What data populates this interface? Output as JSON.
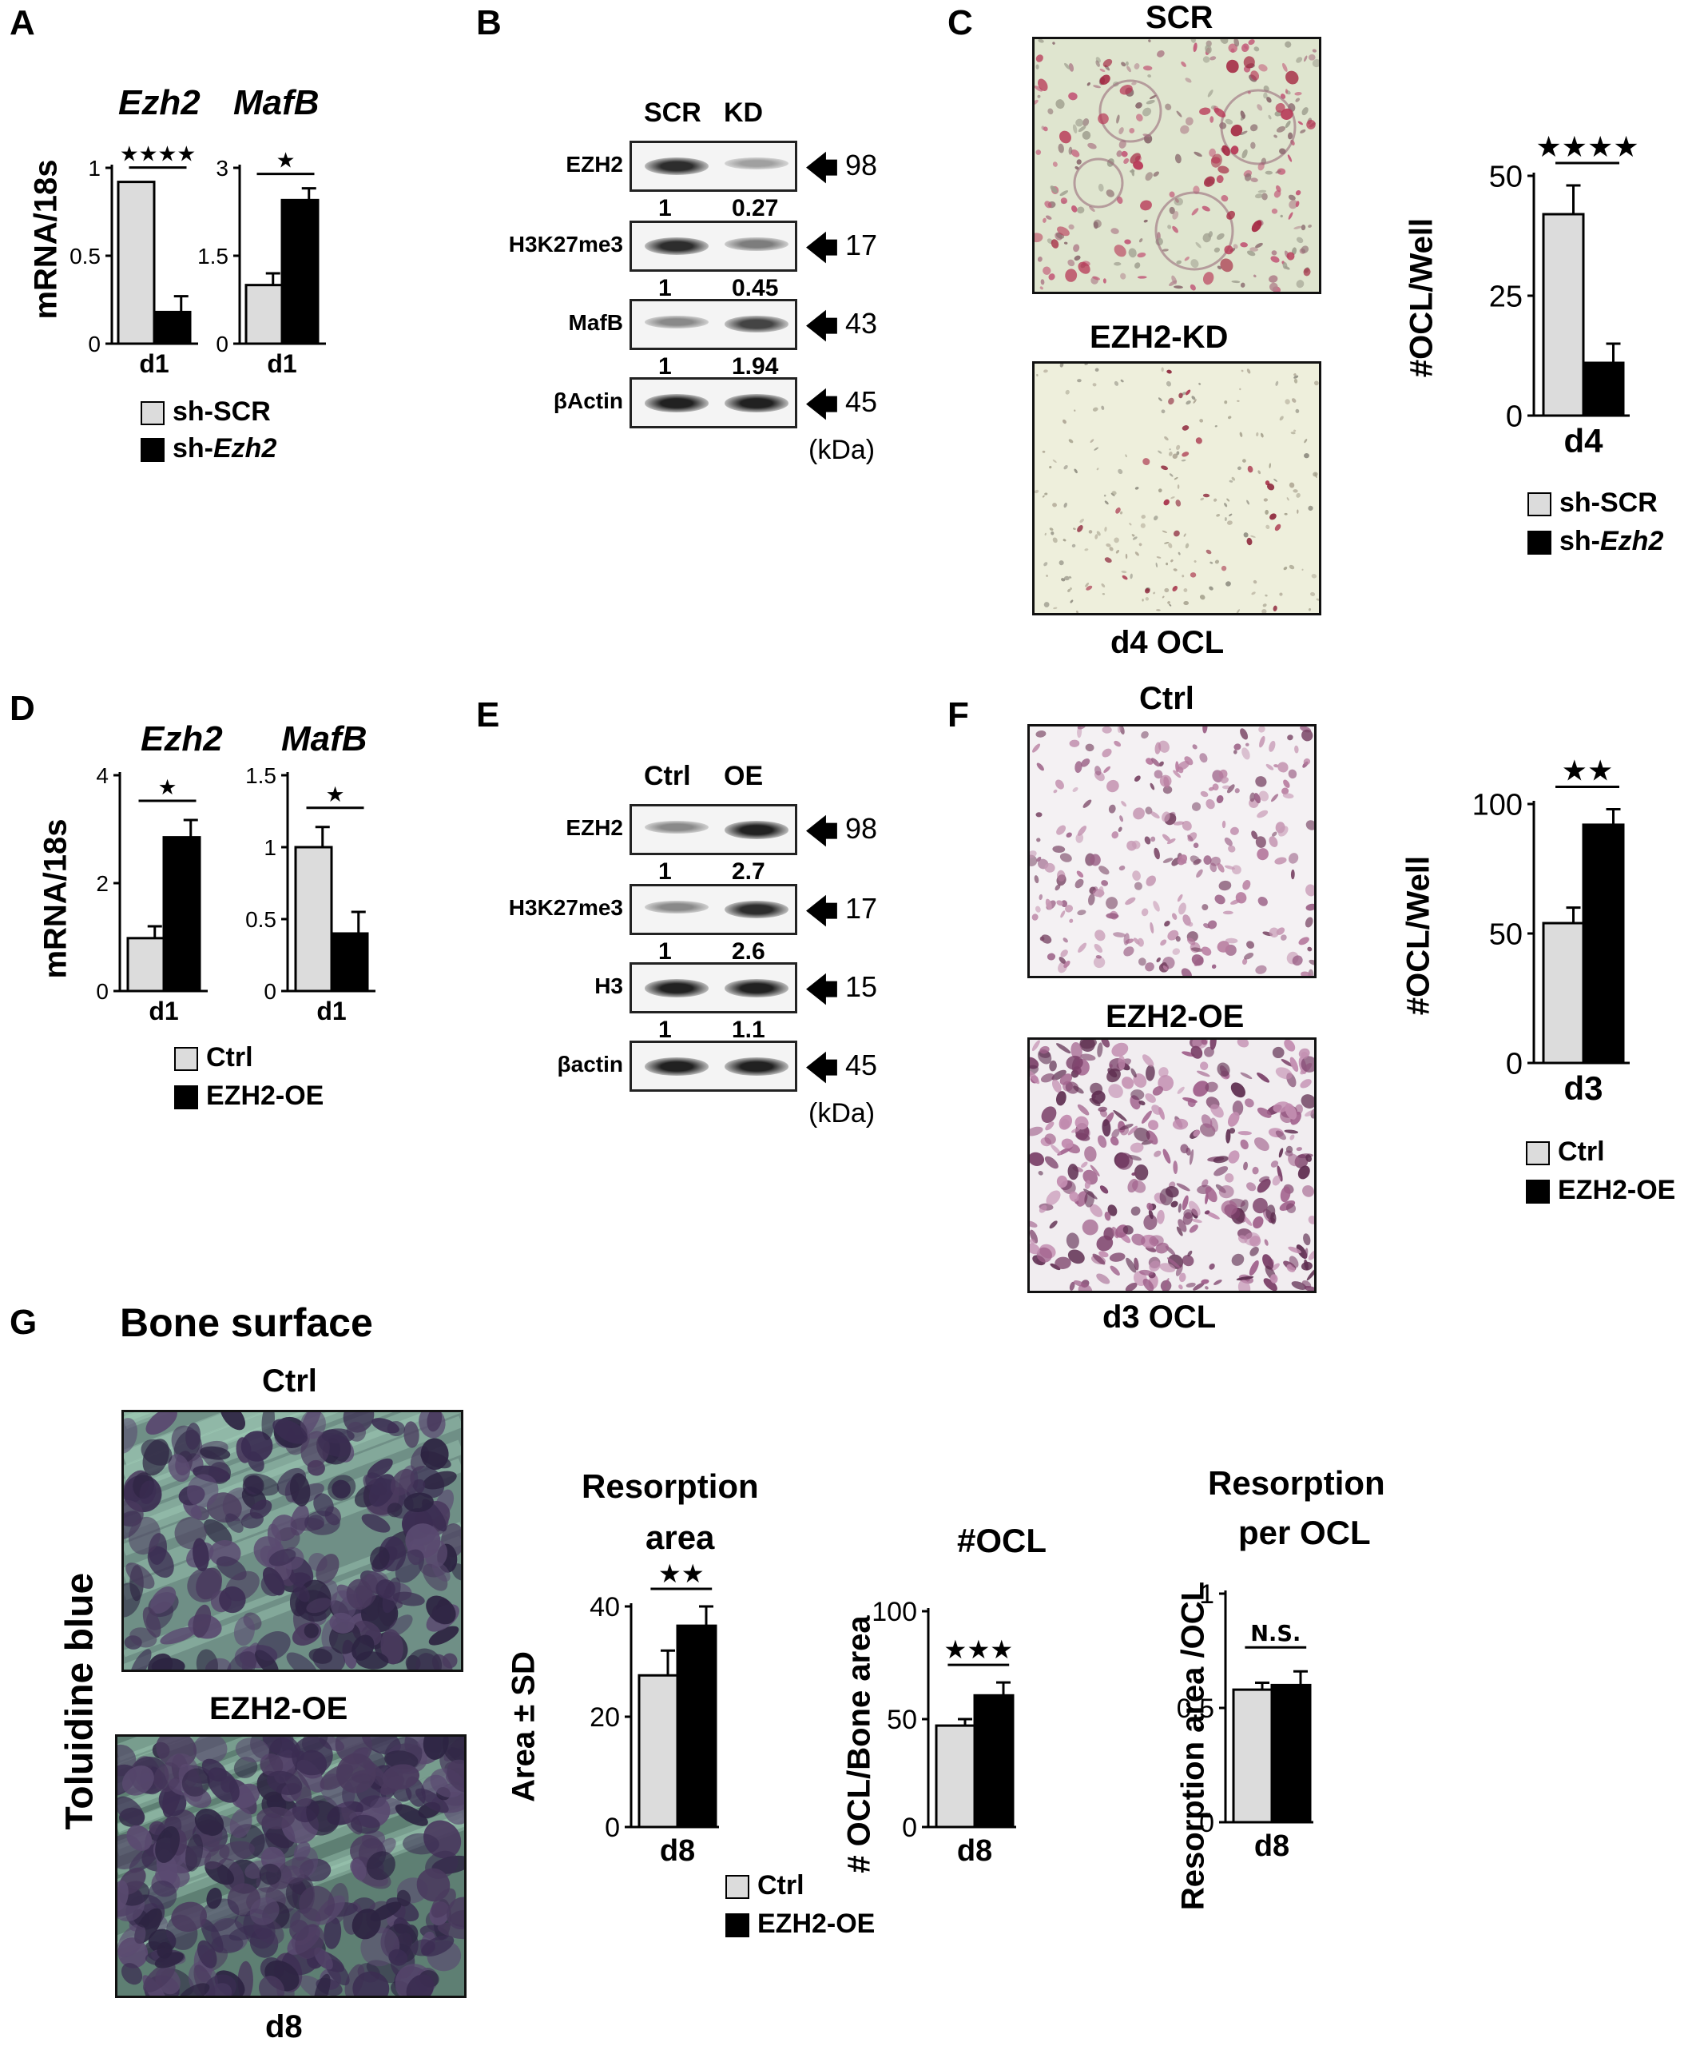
{
  "panels": [
    "A",
    "B",
    "C",
    "D",
    "E",
    "F",
    "G"
  ],
  "colors": {
    "ctrl_bar": "#dcdcdc",
    "treat_bar": "#000000"
  },
  "A": {
    "ylabel": "mRNA/18s",
    "legend": {
      "ctrl": "sh-SCR",
      "treat_prefix": "sh-",
      "treat_gene": "Ezh2"
    },
    "charts": [
      {
        "title": "Ezh2",
        "xtick": "d1",
        "ymax": 1,
        "yticks": [
          "1",
          "0.5",
          "0"
        ],
        "values": [
          0.92,
          0.18
        ],
        "errors": [
          0.0,
          0.09
        ],
        "sig": "★★★★"
      },
      {
        "title": "MafB",
        "xtick": "d1",
        "ymax": 3,
        "yticks": [
          "3",
          "1.5",
          "0"
        ],
        "values": [
          1.0,
          2.45
        ],
        "errors": [
          0.2,
          0.2
        ],
        "sig": "★"
      }
    ]
  },
  "B": {
    "cols": [
      "SCR",
      "KD"
    ],
    "rows": [
      {
        "label": "EZH2",
        "kda": "98",
        "q": [
          "1",
          "0.27"
        ],
        "int": [
          0.85,
          0.35
        ]
      },
      {
        "label": "H3K27me3",
        "kda": "17",
        "q": [
          "1",
          "0.45"
        ],
        "int": [
          0.85,
          0.5
        ]
      },
      {
        "label": "MafB",
        "kda": "43",
        "q": [
          "1",
          "1.94"
        ],
        "int": [
          0.45,
          0.75
        ]
      },
      {
        "label": "βActin",
        "kda": "45",
        "q": [],
        "int": [
          0.9,
          0.9
        ]
      }
    ],
    "unit": "(kDa)"
  },
  "C": {
    "top_title": "SCR",
    "bottom_title": "EZH2-KD",
    "caption": "d4 OCL",
    "chart": {
      "ylabel": "#OCL/Well",
      "xtick": "d4",
      "ymax": 50,
      "yticks": [
        "50",
        "25",
        "0"
      ],
      "values": [
        42,
        11
      ],
      "errors": [
        6,
        4
      ],
      "sig": "★★★★"
    },
    "legend": {
      "ctrl": "sh-SCR",
      "treat_prefix": "sh-",
      "treat_gene": "Ezh2"
    }
  },
  "D": {
    "ylabel": "mRNA/18s",
    "legend": {
      "ctrl": "Ctrl",
      "treat": "EZH2-OE"
    },
    "charts": [
      {
        "title": "Ezh2",
        "xtick": "d1",
        "ymax": 4,
        "yticks": [
          "4",
          "2",
          "0"
        ],
        "values": [
          0.98,
          2.85
        ],
        "errors": [
          0.22,
          0.32
        ],
        "sig": "★"
      },
      {
        "title": "MafB",
        "xtick": "d1",
        "ymax": 1.5,
        "yticks": [
          "1.5",
          "1",
          "0.5",
          "0"
        ],
        "values": [
          1.0,
          0.4
        ],
        "errors": [
          0.14,
          0.15
        ],
        "sig": "★"
      }
    ]
  },
  "E": {
    "cols": [
      "Ctrl",
      "OE"
    ],
    "rows": [
      {
        "label": "EZH2",
        "kda": "98",
        "q": [
          "1",
          "2.7"
        ],
        "int": [
          0.45,
          0.9
        ]
      },
      {
        "label": "H3K27me3",
        "kda": "17",
        "q": [
          "1",
          "2.6"
        ],
        "int": [
          0.45,
          0.85
        ]
      },
      {
        "label": "H3",
        "kda": "15",
        "q": [
          "1",
          "1.1"
        ],
        "int": [
          0.9,
          0.9
        ]
      },
      {
        "label": "βactin",
        "kda": "45",
        "q": [],
        "int": [
          0.9,
          0.9
        ]
      }
    ],
    "unit": "(kDa)"
  },
  "F": {
    "top_title": "Ctrl",
    "bottom_title": "EZH2-OE",
    "caption": "d3 OCL",
    "chart": {
      "ylabel": "#OCL/Well",
      "xtick": "d3",
      "ymax": 100,
      "yticks": [
        "100",
        "50",
        "0"
      ],
      "values": [
        54,
        92
      ],
      "errors": [
        6,
        6
      ],
      "sig": "★★"
    },
    "legend": {
      "ctrl": "Ctrl",
      "treat": "EZH2-OE"
    }
  },
  "G": {
    "heading": "Bone surface",
    "side_label": "Toluidine blue",
    "top_title": "Ctrl",
    "bottom_title": "EZH2-OE",
    "caption": "d8",
    "legend": {
      "ctrl": "Ctrl",
      "treat": "EZH2-OE"
    },
    "charts": [
      {
        "title": [
          "Resorption",
          "area"
        ],
        "ylabel": "Area ± SD",
        "xtick": "d8",
        "ymax": 40,
        "yticks": [
          "40",
          "20",
          "0"
        ],
        "values": [
          27.5,
          36.5
        ],
        "errors": [
          4.5,
          3.5
        ],
        "sig": "★★"
      },
      {
        "title": [
          "#OCL"
        ],
        "ylabel": "# OCL/Bone area",
        "xtick": "d8",
        "ymax": 100,
        "yticks": [
          "100",
          "50",
          "0"
        ],
        "values": [
          47,
          61
        ],
        "errors": [
          3,
          6
        ],
        "sig": "★★★"
      },
      {
        "title": [
          "Resorption",
          "per OCL"
        ],
        "ylabel": "Resorption area /OCL",
        "xtick": "d8",
        "ymax": 1,
        "yticks": [
          "1",
          "0.5",
          "0"
        ],
        "values": [
          0.58,
          0.6
        ],
        "errors": [
          0.03,
          0.06
        ],
        "sig": "N.S."
      }
    ]
  },
  "chart_data": [
    {
      "type": "bar",
      "title": "Ezh2",
      "categories": [
        "d1"
      ],
      "series": [
        {
          "name": "sh-SCR",
          "values": [
            0.92
          ]
        },
        {
          "name": "sh-Ezh2",
          "values": [
            0.18
          ]
        }
      ],
      "ylabel": "mRNA/18s",
      "ylim": [
        0,
        1
      ]
    },
    {
      "type": "bar",
      "title": "MafB",
      "categories": [
        "d1"
      ],
      "series": [
        {
          "name": "sh-SCR",
          "values": [
            1.0
          ]
        },
        {
          "name": "sh-Ezh2",
          "values": [
            2.45
          ]
        }
      ],
      "ylabel": "mRNA/18s",
      "ylim": [
        0,
        3
      ]
    },
    {
      "type": "bar",
      "categories": [
        "d4"
      ],
      "series": [
        {
          "name": "sh-SCR",
          "values": [
            42
          ]
        },
        {
          "name": "sh-Ezh2",
          "values": [
            11
          ]
        }
      ],
      "ylabel": "#OCL/Well",
      "ylim": [
        0,
        50
      ]
    },
    {
      "type": "bar",
      "title": "Ezh2",
      "categories": [
        "d1"
      ],
      "series": [
        {
          "name": "Ctrl",
          "values": [
            0.98
          ]
        },
        {
          "name": "EZH2-OE",
          "values": [
            2.85
          ]
        }
      ],
      "ylabel": "mRNA/18s",
      "ylim": [
        0,
        4
      ]
    },
    {
      "type": "bar",
      "title": "MafB",
      "categories": [
        "d1"
      ],
      "series": [
        {
          "name": "Ctrl",
          "values": [
            1.0
          ]
        },
        {
          "name": "EZH2-OE",
          "values": [
            0.4
          ]
        }
      ],
      "ylabel": "mRNA/18s",
      "ylim": [
        0,
        1.5
      ]
    },
    {
      "type": "bar",
      "categories": [
        "d3"
      ],
      "series": [
        {
          "name": "Ctrl",
          "values": [
            54
          ]
        },
        {
          "name": "EZH2-OE",
          "values": [
            92
          ]
        }
      ],
      "ylabel": "#OCL/Well",
      "ylim": [
        0,
        100
      ]
    },
    {
      "type": "bar",
      "title": "Resorption area",
      "categories": [
        "d8"
      ],
      "series": [
        {
          "name": "Ctrl",
          "values": [
            27.5
          ]
        },
        {
          "name": "EZH2-OE",
          "values": [
            36.5
          ]
        }
      ],
      "ylabel": "Area ± SD",
      "ylim": [
        0,
        40
      ]
    },
    {
      "type": "bar",
      "title": "#OCL",
      "categories": [
        "d8"
      ],
      "series": [
        {
          "name": "Ctrl",
          "values": [
            47
          ]
        },
        {
          "name": "EZH2-OE",
          "values": [
            61
          ]
        }
      ],
      "ylabel": "# OCL/Bone area",
      "ylim": [
        0,
        100
      ]
    },
    {
      "type": "bar",
      "title": "Resorption per OCL",
      "categories": [
        "d8"
      ],
      "series": [
        {
          "name": "Ctrl",
          "values": [
            0.58
          ]
        },
        {
          "name": "EZH2-OE",
          "values": [
            0.6
          ]
        }
      ],
      "ylabel": "Resorption area /OCL",
      "ylim": [
        0,
        1
      ]
    }
  ]
}
